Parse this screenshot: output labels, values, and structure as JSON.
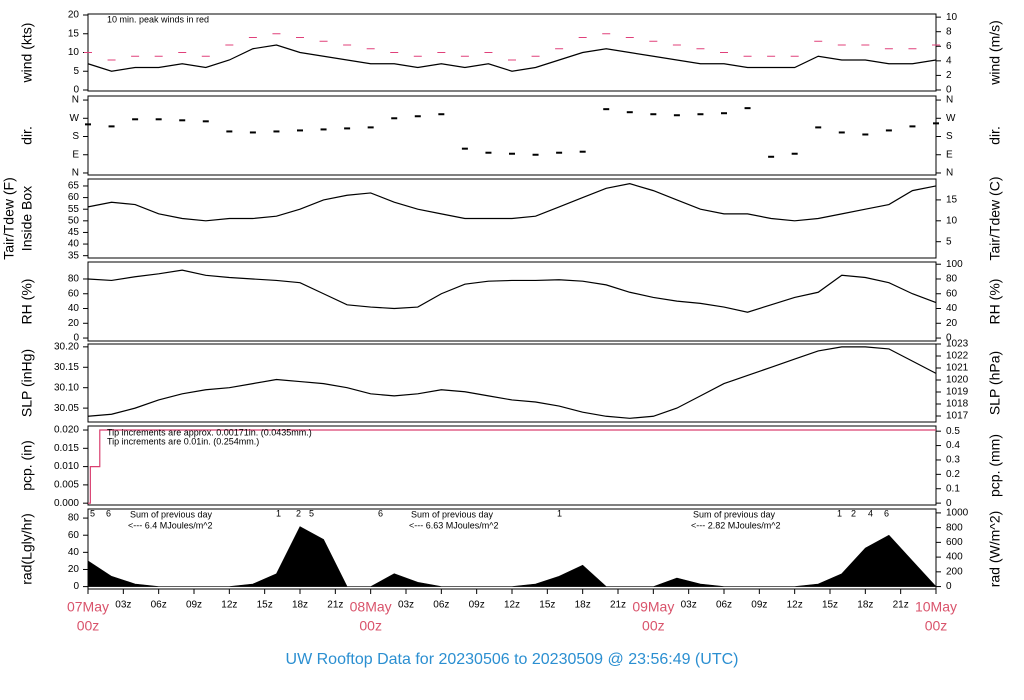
{
  "title": "UW Rooftop Data for 20230506  to  20230509 @ 23:56:49  (UTC)",
  "chart_data": [
    {
      "type": "line",
      "y_label": "wind (kts)",
      "y2_label": "wind (m/s)",
      "annotations": [
        {
          "text": "10 min. peak winds in red",
          "color": "#d94070"
        }
      ],
      "x": [
        0,
        2,
        4,
        6,
        8,
        10,
        12,
        14,
        16,
        18,
        20,
        22,
        24,
        26,
        28,
        30,
        32,
        34,
        36,
        38,
        40,
        42,
        44,
        46,
        48,
        50,
        52,
        54,
        56,
        58,
        60,
        62,
        64,
        66,
        68,
        70,
        72
      ],
      "xlim": [
        0,
        72
      ],
      "ylim": [
        -0.27,
        20.27
      ],
      "yticks": [
        0,
        5,
        10,
        15,
        20
      ],
      "y2lim": [
        -0.14,
        10.43
      ],
      "y2ticks": [
        0,
        2,
        4,
        6,
        8,
        10
      ],
      "series": [
        {
          "color": "#000000",
          "marker": "line",
          "values": [
            7,
            5,
            6,
            6,
            7,
            6,
            8,
            11,
            12,
            10,
            9,
            8,
            7,
            7,
            6,
            7,
            6,
            7,
            5,
            6,
            8,
            10,
            11,
            10,
            9,
            8,
            7,
            7,
            6,
            6,
            6,
            9,
            8,
            8,
            7,
            7,
            8
          ]
        },
        {
          "color": "#e0407a",
          "marker": "dash",
          "values": [
            10,
            8,
            9,
            9,
            10,
            9,
            12,
            14,
            15,
            14,
            13,
            12,
            11,
            10,
            9,
            10,
            9,
            10,
            8,
            9,
            11,
            14,
            15,
            14,
            13,
            12,
            11,
            10,
            9,
            9,
            9,
            13,
            12,
            12,
            11,
            11,
            12
          ]
        }
      ]
    },
    {
      "type": "scatter",
      "y_label": "dir.",
      "y2_label": "dir.",
      "x": [
        0,
        2,
        4,
        6,
        8,
        10,
        12,
        14,
        16,
        18,
        20,
        22,
        24,
        26,
        28,
        30,
        32,
        34,
        36,
        38,
        40,
        42,
        44,
        46,
        48,
        50,
        52,
        54,
        56,
        58,
        60,
        62,
        64,
        66,
        68,
        70,
        72
      ],
      "xlim": [
        0,
        72
      ],
      "ylim": [
        -10,
        380
      ],
      "yticks": [
        {
          "value": 0,
          "label": "N"
        },
        {
          "value": 90,
          "label": "E"
        },
        {
          "value": 180,
          "label": "S"
        },
        {
          "value": 270,
          "label": "W"
        },
        {
          "value": 360,
          "label": "N"
        }
      ],
      "y2lim": [
        -10,
        380
      ],
      "y2ticks": [
        {
          "value": 0,
          "label": "N"
        },
        {
          "value": 90,
          "label": "E"
        },
        {
          "value": 180,
          "label": "S"
        },
        {
          "value": 270,
          "label": "W"
        },
        {
          "value": 360,
          "label": "N"
        }
      ],
      "series": [
        {
          "color": "#000000",
          "values": [
            240,
            230,
            265,
            265,
            260,
            255,
            205,
            200,
            205,
            210,
            215,
            220,
            225,
            270,
            280,
            290,
            120,
            100,
            95,
            90,
            100,
            105,
            315,
            300,
            290,
            285,
            290,
            295,
            320,
            80,
            95,
            225,
            200,
            190,
            210,
            230,
            245
          ]
        }
      ]
    },
    {
      "type": "line",
      "y_label": "Inside Box",
      "y_label_outer": "Tair/Tdew (F)",
      "y2_label": "Tair/Tdew (C)",
      "x": [
        0,
        2,
        4,
        6,
        8,
        10,
        12,
        14,
        16,
        18,
        20,
        22,
        24,
        26,
        28,
        30,
        32,
        34,
        36,
        38,
        40,
        42,
        44,
        46,
        48,
        50,
        52,
        54,
        56,
        58,
        60,
        62,
        64,
        66,
        68,
        70,
        72
      ],
      "xlim": [
        0,
        72
      ],
      "ylim": [
        34,
        68
      ],
      "yticks": [
        35,
        40,
        45,
        50,
        55,
        60,
        65
      ],
      "y2lim": [
        1.1,
        20
      ],
      "y2ticks": [
        5,
        10,
        15
      ],
      "series": [
        {
          "color": "#000000",
          "marker": "line",
          "values": [
            56,
            58,
            57,
            53,
            51,
            50,
            51,
            51,
            52,
            55,
            59,
            61,
            62,
            58,
            55,
            53,
            51,
            51,
            51,
            52,
            56,
            60,
            64,
            66,
            63,
            59,
            55,
            53,
            53,
            51,
            50,
            51,
            53,
            55,
            57,
            63,
            65
          ]
        }
      ]
    },
    {
      "type": "line",
      "y_label": "RH (%)",
      "y2_label": "RH (%)",
      "x": [
        0,
        2,
        4,
        6,
        8,
        10,
        12,
        14,
        16,
        18,
        20,
        22,
        24,
        26,
        28,
        30,
        32,
        34,
        36,
        38,
        40,
        42,
        44,
        46,
        48,
        50,
        52,
        54,
        56,
        58,
        60,
        62,
        64,
        66,
        68,
        70,
        72
      ],
      "xlim": [
        0,
        72
      ],
      "ylim": [
        -4,
        103
      ],
      "yticks": [
        0,
        20,
        40,
        60,
        80
      ],
      "y2lim": [
        -4,
        103
      ],
      "y2ticks": [
        0,
        20,
        40,
        60,
        80,
        100
      ],
      "series": [
        {
          "color": "#000000",
          "marker": "line",
          "values": [
            80,
            78,
            83,
            87,
            92,
            85,
            82,
            80,
            78,
            75,
            60,
            45,
            42,
            40,
            42,
            60,
            73,
            77,
            78,
            78,
            79,
            77,
            72,
            62,
            55,
            50,
            47,
            42,
            35,
            45,
            55,
            62,
            85,
            82,
            75,
            60,
            48
          ]
        }
      ]
    },
    {
      "type": "line",
      "y_label": "SLP (inHg)",
      "y2_label": "SLP (hPa)",
      "x": [
        0,
        2,
        4,
        6,
        8,
        10,
        12,
        14,
        16,
        18,
        20,
        22,
        24,
        26,
        28,
        30,
        32,
        34,
        36,
        38,
        40,
        42,
        44,
        46,
        48,
        50,
        52,
        54,
        56,
        58,
        60,
        62,
        64,
        66,
        68,
        70,
        72
      ],
      "xlim": [
        0,
        72
      ],
      "ylim": [
        30.016,
        30.207
      ],
      "yticks": [
        {
          "value": 30.05,
          "label": "30.05"
        },
        {
          "value": 30.1,
          "label": "30.10"
        },
        {
          "value": 30.15,
          "label": "30.15"
        },
        {
          "value": 30.2,
          "label": "30.20"
        }
      ],
      "y2lim": [
        1016.5,
        1023.0
      ],
      "y2ticks": [
        1017,
        1018,
        1019,
        1020,
        1021,
        1022,
        1023
      ],
      "series": [
        {
          "color": "#000000",
          "marker": "line",
          "values": [
            30.03,
            30.035,
            30.05,
            30.07,
            30.085,
            30.095,
            30.1,
            30.11,
            30.12,
            30.115,
            30.11,
            30.1,
            30.085,
            30.08,
            30.085,
            30.095,
            30.09,
            30.08,
            30.07,
            30.065,
            30.055,
            30.04,
            30.03,
            30.025,
            30.03,
            30.05,
            30.08,
            30.11,
            30.13,
            30.15,
            30.17,
            30.19,
            30.2,
            30.2,
            30.195,
            30.165,
            30.135
          ]
        }
      ]
    },
    {
      "type": "step",
      "y_label": "pcp. (in)",
      "y2_label": "pcp. (mm)",
      "annotations": [
        {
          "text": "Tip increments are approx. 0.00171in. (0.0435mm.)",
          "color": "#d94070"
        },
        {
          "text": "Tip increments are 0.01in. (0.254mm.)",
          "color": "#2b8fd1"
        }
      ],
      "x": [
        0,
        0.2,
        1,
        72
      ],
      "xlim": [
        0,
        72
      ],
      "ylim": [
        -0.0005,
        0.0211
      ],
      "yticks": [
        {
          "value": 0,
          "label": "0.000"
        },
        {
          "value": 0.005,
          "label": "0.005"
        },
        {
          "value": 0.01,
          "label": "0.010"
        },
        {
          "value": 0.015,
          "label": "0.015"
        },
        {
          "value": 0.02,
          "label": "0.020"
        }
      ],
      "y2lim": [
        -0.013,
        0.536
      ],
      "y2ticks": [
        0,
        0.1,
        0.2,
        0.3,
        0.4,
        0.5
      ],
      "series": [
        {
          "color": "#d94070",
          "values": [
            0,
            0.01,
            0.02,
            0.02
          ]
        }
      ]
    },
    {
      "type": "area",
      "y_label": "rad(Lgly/hr)",
      "y2_label": "rad (W/m^2)",
      "annotations": [
        {
          "text": "Sum of previous day",
          "color": "#9a30d0"
        },
        {
          "text": "<--- 6.4 MJoules/m^2",
          "color": "#9a30d0"
        },
        {
          "text": "Sum of previous day",
          "color": "#9a30d0"
        },
        {
          "text": "<--- 6.63 MJoules/m^2",
          "color": "#9a30d0"
        },
        {
          "text": "Sum of previous day",
          "color": "#9a30d0"
        },
        {
          "text": "<--- 2.82 MJoules/m^2",
          "color": "#9a30d0"
        },
        {
          "text": "5",
          "color": "#9a30d0"
        },
        {
          "text": "6",
          "color": "#9a30d0"
        },
        {
          "text": "1",
          "color": "#9a30d0"
        },
        {
          "text": "2",
          "color": "#9a30d0"
        },
        {
          "text": "5",
          "color": "#9a30d0"
        },
        {
          "text": "6",
          "color": "#9a30d0"
        },
        {
          "text": "1",
          "color": "#9a30d0"
        },
        {
          "text": "1",
          "color": "#9a30d0"
        },
        {
          "text": "2",
          "color": "#9a30d0"
        },
        {
          "text": "4",
          "color": "#9a30d0"
        },
        {
          "text": "6",
          "color": "#9a30d0"
        }
      ],
      "x": [
        0,
        2,
        4,
        6,
        8,
        10,
        12,
        14,
        16,
        18,
        20,
        22,
        24,
        26,
        28,
        30,
        32,
        34,
        36,
        38,
        40,
        42,
        44,
        46,
        48,
        50,
        52,
        54,
        56,
        58,
        60,
        62,
        64,
        66,
        68,
        70,
        72
      ],
      "xlim": [
        0,
        72
      ],
      "ylim": [
        -2.8,
        90.6
      ],
      "yticks": [
        0,
        20,
        40,
        60,
        80
      ],
      "y2lim": [
        -33,
        1053
      ],
      "y2ticks": [
        0,
        200,
        400,
        600,
        800,
        1000
      ],
      "xticks": [
        {
          "value": 0,
          "label": "07May",
          "label2": "00z"
        },
        {
          "value": 3,
          "label": "03z"
        },
        {
          "value": 6,
          "label": "06z"
        },
        {
          "value": 9,
          "label": "09z"
        },
        {
          "value": 12,
          "label": "12z"
        },
        {
          "value": 15,
          "label": "15z"
        },
        {
          "value": 18,
          "label": "18z"
        },
        {
          "value": 21,
          "label": "21z"
        },
        {
          "value": 24,
          "label": "08May",
          "label2": "00z"
        },
        {
          "value": 27,
          "label": "03z"
        },
        {
          "value": 30,
          "label": "06z"
        },
        {
          "value": 33,
          "label": "09z"
        },
        {
          "value": 36,
          "label": "12z"
        },
        {
          "value": 39,
          "label": "15z"
        },
        {
          "value": 42,
          "label": "18z"
        },
        {
          "value": 45,
          "label": "21z"
        },
        {
          "value": 48,
          "label": "09May",
          "label2": "00z"
        },
        {
          "value": 51,
          "label": "03z"
        },
        {
          "value": 54,
          "label": "06z"
        },
        {
          "value": 57,
          "label": "09z"
        },
        {
          "value": 60,
          "label": "12z"
        },
        {
          "value": 63,
          "label": "15z"
        },
        {
          "value": 66,
          "label": "18z"
        },
        {
          "value": 69,
          "label": "21z"
        },
        {
          "value": 72,
          "label": "10May",
          "label2": "00z"
        }
      ],
      "series": [
        {
          "color": "#000000",
          "values": [
            30,
            12,
            3,
            0,
            0,
            0,
            0,
            3,
            15,
            70,
            55,
            0,
            0,
            15,
            5,
            0,
            0,
            0,
            0,
            3,
            12,
            25,
            0,
            0,
            0,
            10,
            3,
            0,
            0,
            0,
            0,
            3,
            15,
            45,
            60,
            30,
            0
          ]
        }
      ]
    }
  ]
}
